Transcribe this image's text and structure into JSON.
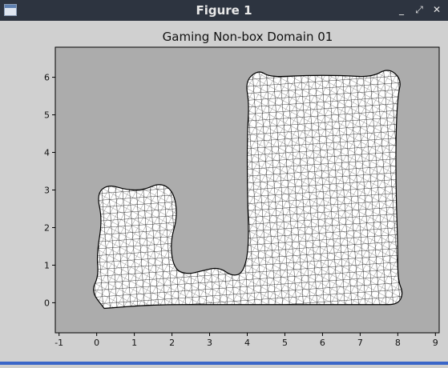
{
  "window": {
    "title": "Figure 1",
    "controls": {
      "minimize": "_",
      "maximize": "⤢",
      "close": "✕"
    }
  },
  "colors": {
    "titlebar": "#2d3440",
    "figure_bg": "#d0d0d0",
    "axes_bg": "#acacac",
    "mesh_fill": "#ffffff",
    "mesh_line": "#000000"
  },
  "chart_data": {
    "type": "mesh",
    "title": "Gaming Non-box Domain 01",
    "xlabel": "",
    "ylabel": "",
    "xlim": [
      -1.1,
      9.1
    ],
    "ylim": [
      -0.8,
      6.8
    ],
    "xticks": [
      -1,
      0,
      1,
      2,
      3,
      4,
      5,
      6,
      7,
      8,
      9
    ],
    "yticks": [
      0,
      1,
      2,
      3,
      4,
      5,
      6
    ],
    "grid": false,
    "domain_outline": [
      [
        0.2,
        -0.15
      ],
      [
        1.5,
        -0.05
      ],
      [
        3.0,
        -0.05
      ],
      [
        4.5,
        -0.05
      ],
      [
        6.0,
        -0.05
      ],
      [
        7.5,
        -0.05
      ],
      [
        8.0,
        -0.05
      ],
      [
        8.15,
        0.25
      ],
      [
        8.0,
        0.6
      ],
      [
        8.0,
        1.5
      ],
      [
        7.95,
        3.0
      ],
      [
        7.95,
        4.5
      ],
      [
        8.0,
        5.5
      ],
      [
        8.1,
        5.95
      ],
      [
        7.75,
        6.25
      ],
      [
        7.3,
        6.0
      ],
      [
        6.5,
        6.05
      ],
      [
        5.5,
        6.05
      ],
      [
        4.6,
        6.0
      ],
      [
        4.3,
        6.2
      ],
      [
        3.95,
        5.9
      ],
      [
        4.05,
        5.3
      ],
      [
        4.0,
        4.5
      ],
      [
        4.0,
        3.0
      ],
      [
        4.05,
        1.5
      ],
      [
        3.9,
        0.8
      ],
      [
        3.6,
        0.7
      ],
      [
        3.25,
        0.95
      ],
      [
        2.8,
        0.85
      ],
      [
        2.4,
        0.75
      ],
      [
        2.05,
        0.9
      ],
      [
        1.95,
        1.6
      ],
      [
        2.15,
        2.3
      ],
      [
        2.05,
        2.95
      ],
      [
        1.7,
        3.2
      ],
      [
        1.25,
        3.0
      ],
      [
        0.8,
        3.0
      ],
      [
        0.3,
        3.15
      ],
      [
        0.0,
        2.9
      ],
      [
        0.15,
        2.2
      ],
      [
        0.0,
        1.3
      ],
      [
        0.05,
        0.7
      ],
      [
        -0.15,
        0.3
      ]
    ]
  }
}
